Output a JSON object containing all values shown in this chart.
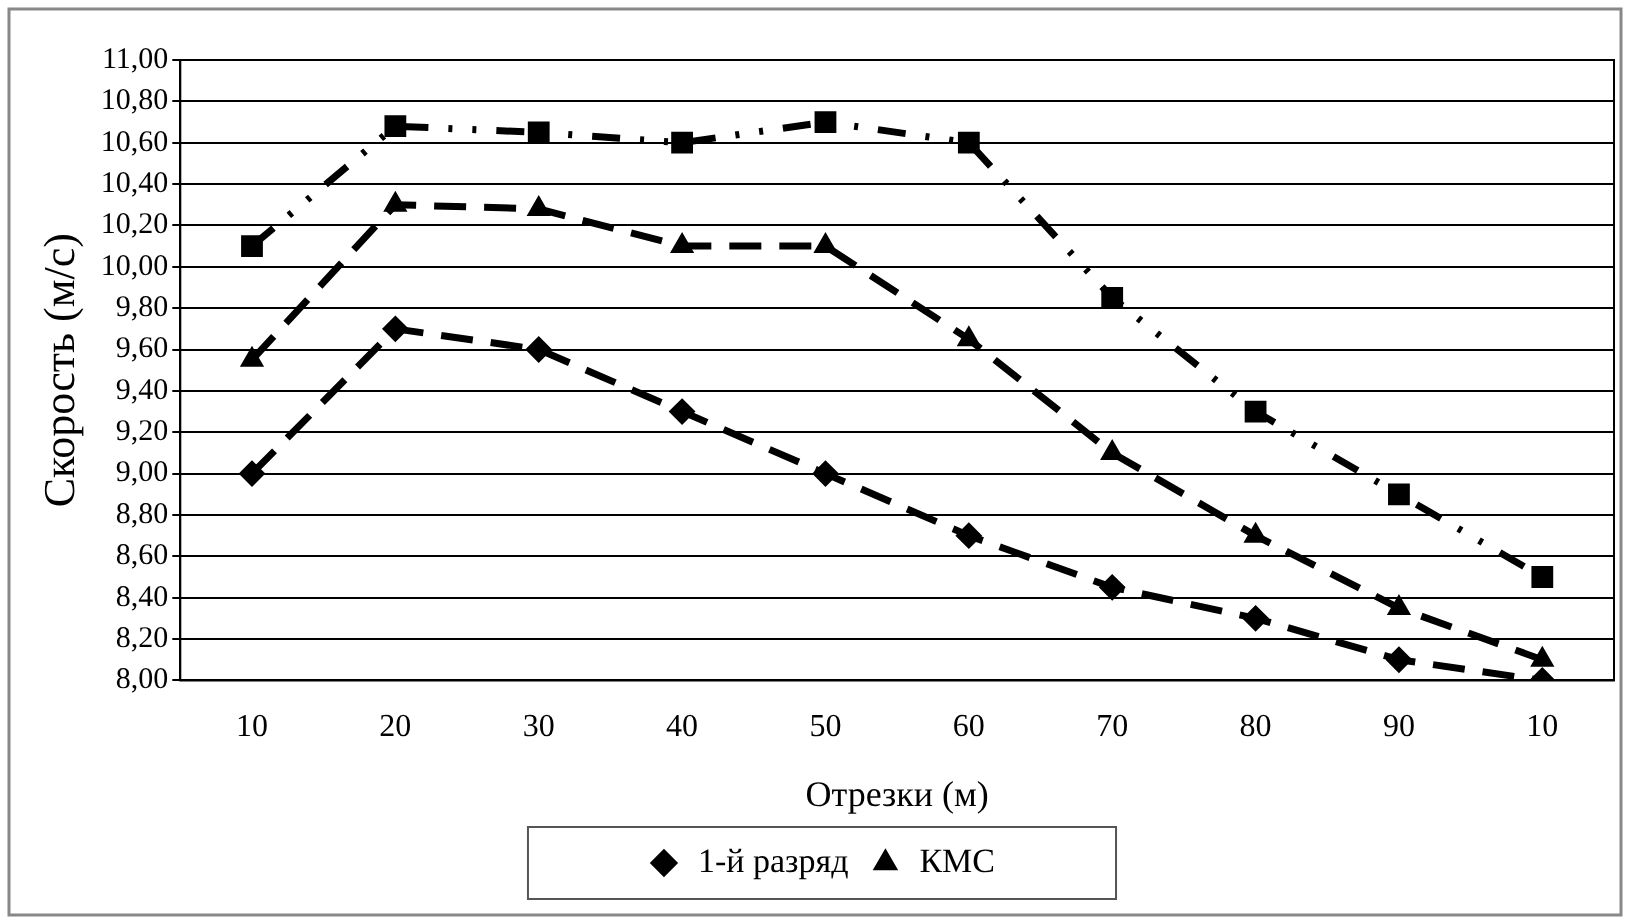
{
  "chart_data": {
    "type": "line",
    "xlabel": "Отрезки (м)",
    "ylabel": "Скорость (м/с)",
    "categories": [
      "10",
      "20",
      "30",
      "40",
      "50",
      "60",
      "70",
      "80",
      "90",
      "10"
    ],
    "ylim": [
      8,
      11
    ],
    "yticks": [
      {
        "value": 8,
        "label": "8,00"
      },
      {
        "value": 8.2,
        "label": "8,20"
      },
      {
        "value": 8.4,
        "label": "8,40"
      },
      {
        "value": 8.6,
        "label": "8,60"
      },
      {
        "value": 8.8,
        "label": "8,80"
      },
      {
        "value": 9,
        "label": "9,00"
      },
      {
        "value": 9.2,
        "label": "9,20"
      },
      {
        "value": 9.4,
        "label": "9,40"
      },
      {
        "value": 9.6,
        "label": "9,60"
      },
      {
        "value": 9.8,
        "label": "9,80"
      },
      {
        "value": 10,
        "label": "10,00"
      },
      {
        "value": 10.2,
        "label": "10,20"
      },
      {
        "value": 10.4,
        "label": "10,40"
      },
      {
        "value": 10.6,
        "label": "10,60"
      },
      {
        "value": 10.8,
        "label": "10,80"
      },
      {
        "value": 11,
        "label": "11,00"
      }
    ],
    "grid": "y",
    "legend": "bottom",
    "series": [
      {
        "name": "1-й разряд",
        "color": "#000000",
        "marker": "diamond",
        "line_style": "dashed",
        "values": [
          9.0,
          9.7,
          9.6,
          9.3,
          9.0,
          8.7,
          8.45,
          8.3,
          8.1,
          8.0
        ]
      },
      {
        "name": "КМС",
        "color": "#000000",
        "marker": "triangle",
        "line_style": "dashed",
        "values": [
          9.55,
          10.3,
          10.28,
          10.1,
          10.1,
          9.65,
          9.1,
          8.7,
          8.35,
          8.1
        ]
      },
      {
        "color": "#000000",
        "marker": "square",
        "line_style": "dotted",
        "values": [
          10.1,
          10.68,
          10.65,
          10.6,
          10.7,
          10.6,
          9.85,
          9.3,
          8.9,
          8.5
        ]
      }
    ]
  }
}
